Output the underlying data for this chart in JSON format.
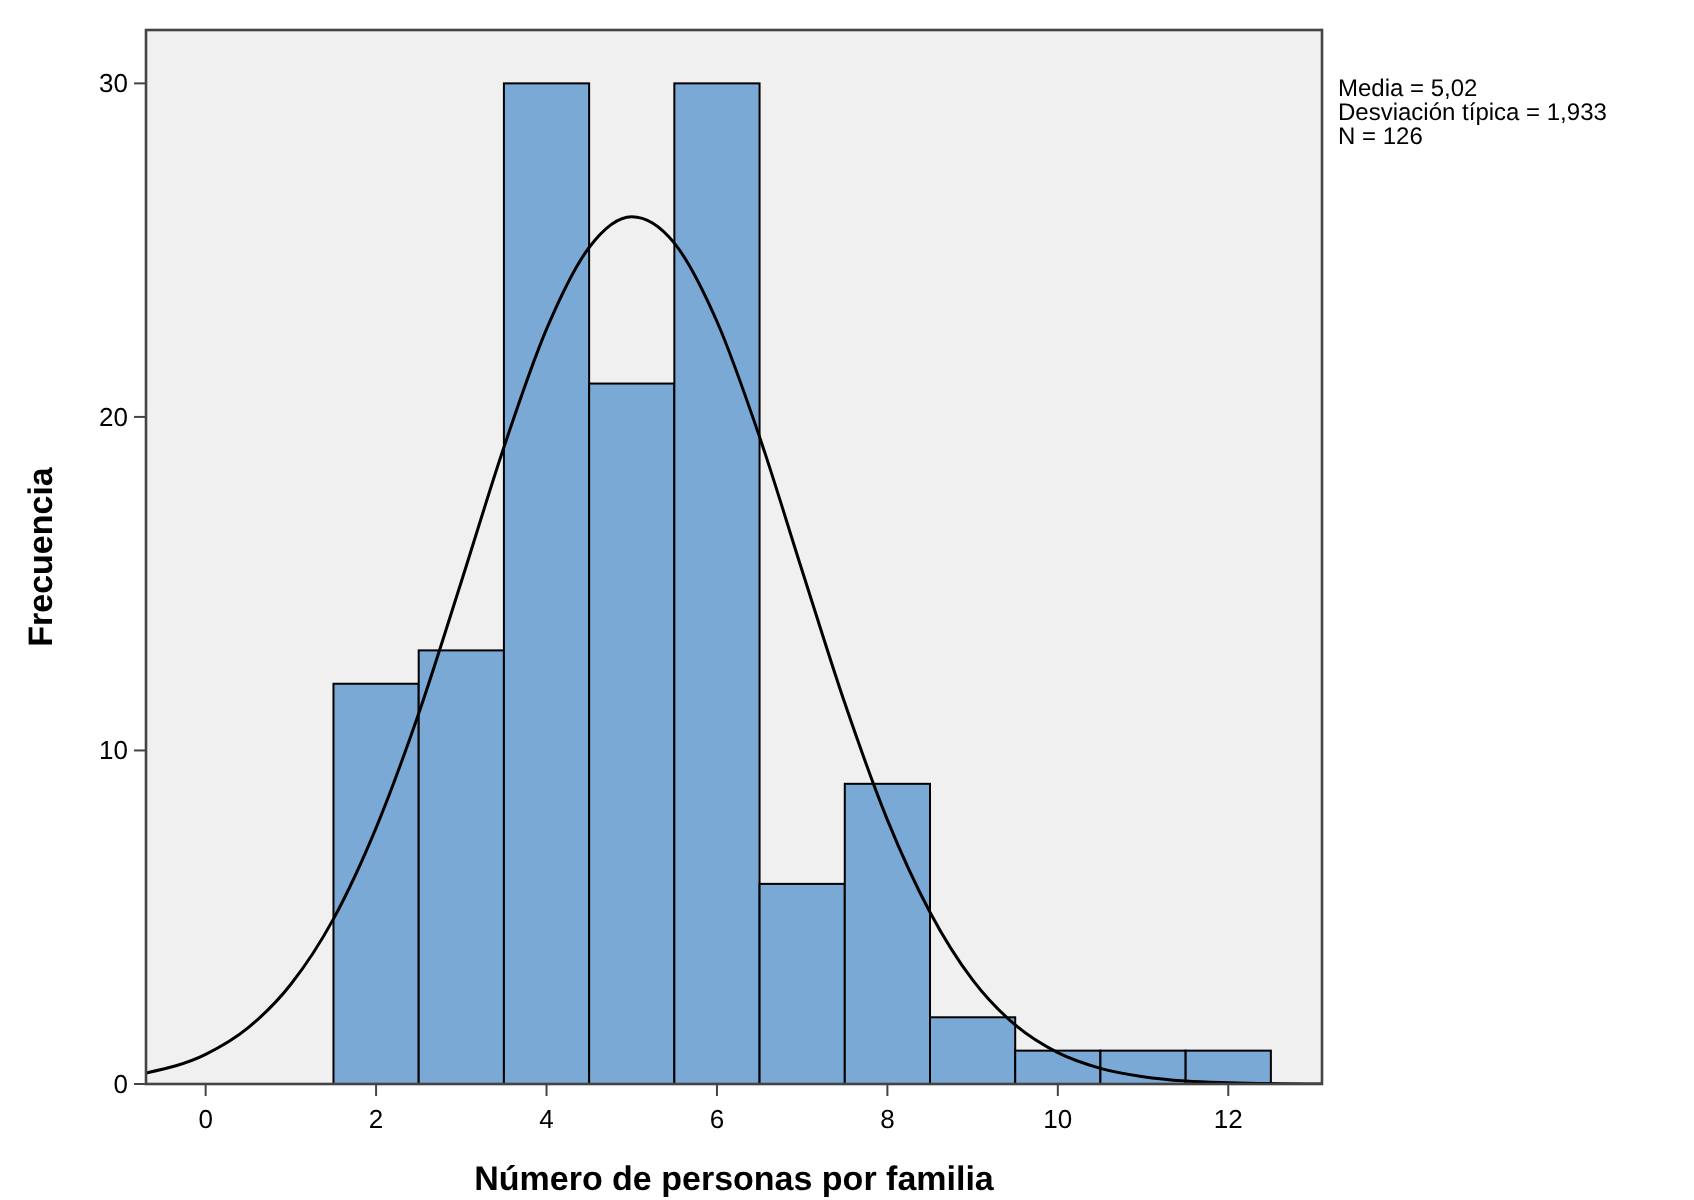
{
  "chart_data": {
    "type": "histogram",
    "xlabel": "Número de personas por familia",
    "ylabel": "Frecuencia",
    "xlim": [
      -0.7,
      13.1
    ],
    "xticks": [
      0,
      2,
      4,
      6,
      8,
      10,
      12
    ],
    "ylim": [
      0,
      31.6
    ],
    "yticks": [
      0,
      10,
      20,
      30
    ],
    "color": "#7aa9d6",
    "bins": [
      1.5,
      2.5,
      3.5,
      4.5,
      5.5,
      6.5,
      7.5,
      8.5,
      9.5,
      10.5,
      11.5,
      12.5
    ],
    "values": [
      12,
      13,
      30,
      21,
      30,
      6,
      9,
      2,
      1,
      1,
      1
    ],
    "series": [
      {
        "type": "line",
        "color": "#000000",
        "x": [
          -0.7,
          0,
          0.5,
          1,
          1.5,
          2,
          2.5,
          3,
          3.5,
          4,
          4.5,
          5,
          5.5,
          6,
          6.5,
          7,
          7.5,
          8,
          8.5,
          9,
          9.5,
          10,
          10.5,
          11,
          11.5,
          12,
          13.1
        ],
        "values": [
          0.33,
          0.89,
          1.69,
          2.99,
          4.95,
          7.68,
          11.11,
          15.06,
          19.09,
          22.63,
          25.08,
          26.0,
          25.21,
          22.86,
          19.4,
          15.39,
          11.42,
          7.92,
          5.15,
          3.12,
          1.77,
          0.94,
          0.47,
          0.22,
          0.09,
          0.04,
          0.0
        ]
      }
    ],
    "annotations": [
      "Media = 5,02",
      "Desviación típica = 1,933",
      "N = 126"
    ]
  }
}
